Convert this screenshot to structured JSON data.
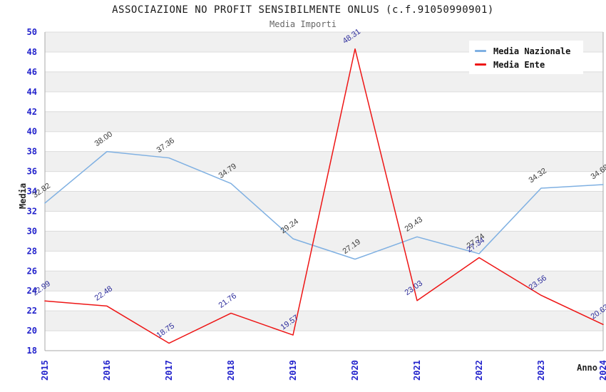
{
  "header": {
    "title": "ASSOCIAZIONE NO PROFIT SENSIBILMENTE ONLUS (c.f.91050990901)",
    "subtitle": "Media Importi"
  },
  "legend": {
    "items": [
      {
        "label": "Media Nazionale",
        "color": "#7FB0E2"
      },
      {
        "label": "Media Ente",
        "color": "#EE1515"
      }
    ]
  },
  "axes": {
    "y_title": "Media",
    "x_title": "Anno",
    "tick_color": "#2222CC",
    "y_tick_labels": [
      "18",
      "20",
      "22",
      "24",
      "26",
      "28",
      "30",
      "32",
      "34",
      "36",
      "38",
      "40",
      "42",
      "44",
      "46",
      "48",
      "50"
    ],
    "x_tick_labels": [
      "2015",
      "2016",
      "2017",
      "2018",
      "2019",
      "2020",
      "2021",
      "2022",
      "2023",
      "2024"
    ]
  },
  "chart_data": {
    "type": "line",
    "title": "ASSOCIAZIONE NO PROFIT SENSIBILMENTE ONLUS (c.f.91050990901)",
    "subtitle": "Media Importi",
    "xlabel": "Anno",
    "ylabel": "Media",
    "categories": [
      "2015",
      "2016",
      "2017",
      "2018",
      "2019",
      "2020",
      "2021",
      "2022",
      "2023",
      "2024"
    ],
    "series": [
      {
        "name": "Media Nazionale",
        "color": "#7FB0E2",
        "label_color": "#3C3C3C",
        "values": [
          32.82,
          38.0,
          37.36,
          34.79,
          29.24,
          27.19,
          29.43,
          27.74,
          34.32,
          34.68
        ]
      },
      {
        "name": "Media Ente",
        "color": "#EE1515",
        "label_color": "#2B2B9B",
        "values": [
          22.99,
          22.48,
          18.75,
          21.76,
          19.57,
          48.31,
          23.03,
          27.34,
          23.56,
          20.63
        ]
      }
    ],
    "ylim": [
      18,
      50
    ],
    "ytick_step": 2,
    "grid": true,
    "legend_position": "top-right",
    "band_color": "#F0F0F0",
    "gridline_color": "#DCDCDC",
    "border_color": "#AAAAAA",
    "value_label_decimals": 2
  }
}
